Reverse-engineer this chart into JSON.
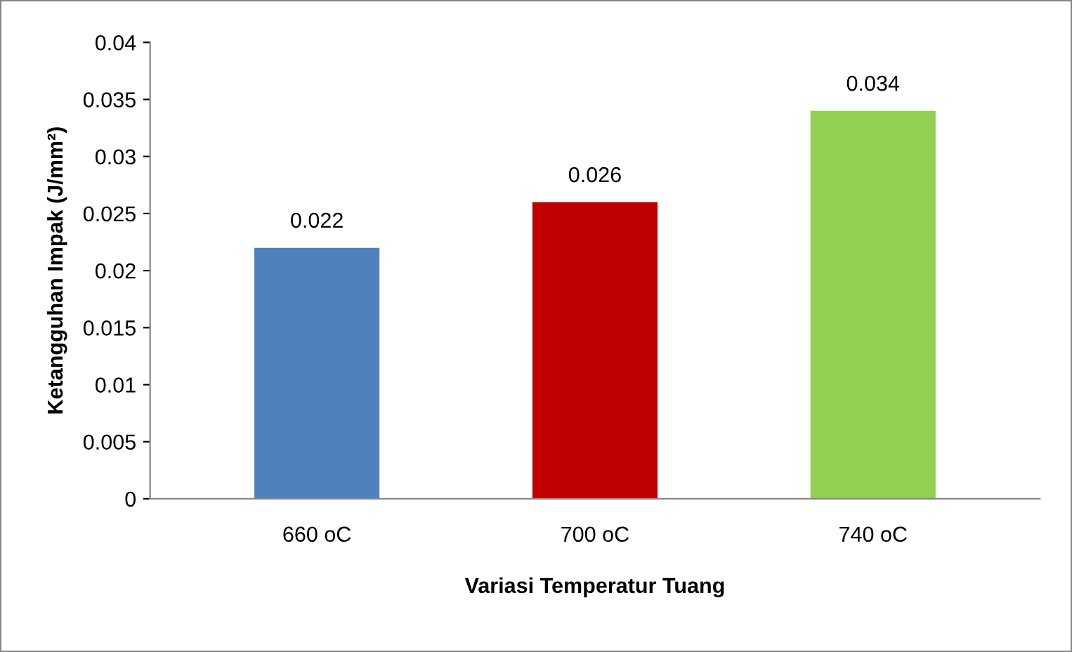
{
  "chart_data": {
    "type": "bar",
    "xlabel": "Variasi Temperatur Tuang",
    "ylabel": "Ketangguhan Impak (J/mm²)",
    "categories": [
      "660 oC",
      "700 oC",
      "740 oC"
    ],
    "values": [
      0.022,
      0.026,
      0.034
    ],
    "colors": [
      "#4f81bd",
      "#c00000",
      "#92d050"
    ],
    "ylim": [
      0,
      0.04
    ],
    "yticks": [
      0,
      0.005,
      0.01,
      0.015,
      0.02,
      0.025,
      0.03,
      0.035,
      0.04
    ],
    "data_labels": true,
    "grid": false,
    "legend": false
  }
}
